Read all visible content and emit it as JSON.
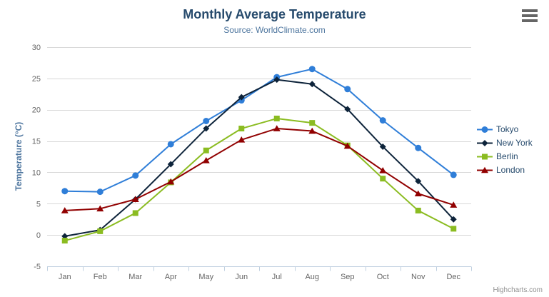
{
  "credits": {
    "label": "Highcharts.com"
  },
  "menu": {
    "icon": "hamburger-icon"
  },
  "style": {
    "title_color": "#274b6d",
    "subtitle_color": "#4d759e",
    "axis_title_color": "#4d759e",
    "tick_label_color": "#666666",
    "legend_text_color": "#274b6d",
    "credits_color": "#909090",
    "grid_color": "#d8d8d8",
    "axis_line_color": "#c0d0e0"
  },
  "chart_data": {
    "type": "line",
    "title": "Monthly Average Temperature",
    "subtitle": "Source: WorldClimate.com",
    "xlabel": "",
    "ylabel": "Temperature (°C)",
    "ylim": [
      -5,
      30
    ],
    "ytick_interval": 5,
    "grid": true,
    "legend_position": "right",
    "categories": [
      "Jan",
      "Feb",
      "Mar",
      "Apr",
      "May",
      "Jun",
      "Jul",
      "Aug",
      "Sep",
      "Oct",
      "Nov",
      "Dec"
    ],
    "series": [
      {
        "name": "Tokyo",
        "color": "#2f7ed8",
        "marker": "circle",
        "values": [
          7.0,
          6.9,
          9.5,
          14.5,
          18.2,
          21.5,
          25.2,
          26.5,
          23.3,
          18.3,
          13.9,
          9.6
        ]
      },
      {
        "name": "New York",
        "color": "#0d233a",
        "marker": "diamond",
        "values": [
          -0.2,
          0.8,
          5.7,
          11.3,
          17.0,
          22.0,
          24.8,
          24.1,
          20.1,
          14.1,
          8.6,
          2.5
        ]
      },
      {
        "name": "Berlin",
        "color": "#8bbc21",
        "marker": "square",
        "values": [
          -0.9,
          0.6,
          3.5,
          8.4,
          13.5,
          17.0,
          18.6,
          17.9,
          14.3,
          9.0,
          3.9,
          1.0
        ]
      },
      {
        "name": "London",
        "color": "#910000",
        "marker": "triangle",
        "values": [
          3.9,
          4.2,
          5.7,
          8.5,
          11.9,
          15.2,
          17.0,
          16.6,
          14.2,
          10.3,
          6.6,
          4.8
        ]
      }
    ]
  }
}
